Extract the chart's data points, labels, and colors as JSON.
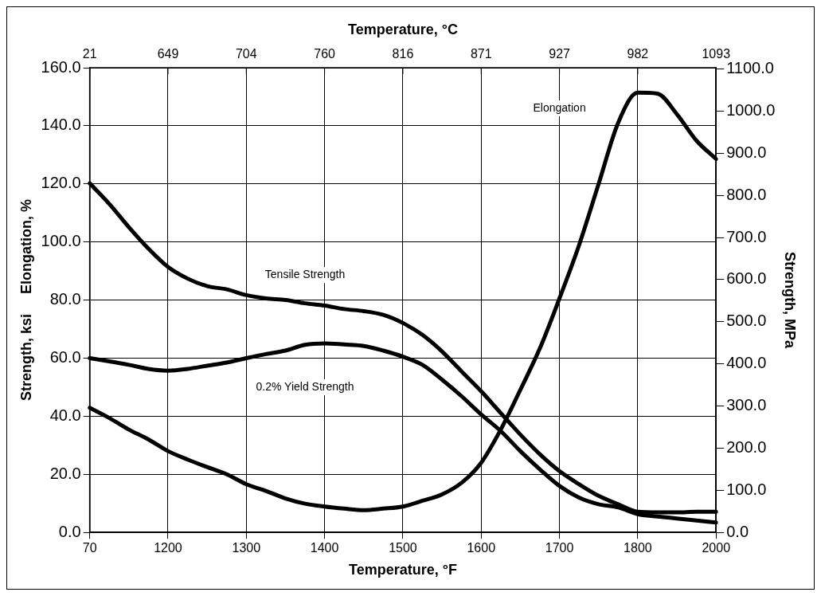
{
  "chart_data": {
    "type": "line",
    "xlabel": "Temperature, °F",
    "x2label": "Temperature, °C",
    "ylabel": "Strength, ksi     Elongation, %",
    "y2label": "Strength, MPa",
    "categories": [
      "70",
      null,
      null,
      null,
      "1200",
      null,
      null,
      null,
      "1300",
      null,
      null,
      null,
      "1400",
      null,
      null,
      null,
      "1500",
      null,
      null,
      null,
      "1600",
      null,
      null,
      null,
      "1700",
      null,
      null,
      null,
      "1800",
      null,
      null,
      null,
      "2000"
    ],
    "ylim": [
      0,
      160
    ],
    "yticks": [
      {
        "value": 0,
        "label": "0.0"
      },
      {
        "value": 20,
        "label": "20.0"
      },
      {
        "value": 40,
        "label": "40.0"
      },
      {
        "value": 60,
        "label": "60.0"
      },
      {
        "value": 80,
        "label": "80.0"
      },
      {
        "value": 100,
        "label": "100.0"
      },
      {
        "value": 120,
        "label": "120.0"
      },
      {
        "value": 140,
        "label": "140.0"
      },
      {
        "value": 160,
        "label": "160.0"
      }
    ],
    "y2lim": [
      0,
      1103
    ],
    "y2ticks": [
      {
        "value": 0,
        "label": "0.0"
      },
      {
        "value": 100,
        "label": "100.0"
      },
      {
        "value": 200,
        "label": "200.0"
      },
      {
        "value": 300,
        "label": "300.0"
      },
      {
        "value": 400,
        "label": "400.0"
      },
      {
        "value": 500,
        "label": "500.0"
      },
      {
        "value": 600,
        "label": "600.0"
      },
      {
        "value": 700,
        "label": "700.0"
      },
      {
        "value": 800,
        "label": "800.0"
      },
      {
        "value": 900,
        "label": "900.0"
      },
      {
        "value": 1000,
        "label": "1000.0"
      },
      {
        "value": 1100,
        "label": "1100.0"
      }
    ],
    "grid": true,
    "legend": false,
    "marker": "none",
    "line_style": "solid",
    "series": [
      {
        "name": "Tensile Strength",
        "color": "#000000",
        "values": [
          120.2,
          113.1,
          105.1,
          97.7,
          91.4,
          87.4,
          84.8,
          83.7,
          81.7,
          80.6,
          80.0,
          78.9,
          78.1,
          76.9,
          76.2,
          74.9,
          72.1,
          68.0,
          62.3,
          55.4,
          48.6,
          41.1,
          33.7,
          26.9,
          21.1,
          16.6,
          12.6,
          9.7,
          7.1,
          6.9,
          6.9,
          7.1,
          7.1
        ]
      },
      {
        "name": "0.2% Yield Strength",
        "color": "#000000",
        "values": [
          60.0,
          58.9,
          57.7,
          56.3,
          55.7,
          56.3,
          57.4,
          58.5,
          60.0,
          61.4,
          62.6,
          64.6,
          65.1,
          64.7,
          64.2,
          62.6,
          60.5,
          57.7,
          52.6,
          46.9,
          40.6,
          34.9,
          28.0,
          21.7,
          16.0,
          12.0,
          9.7,
          8.6,
          6.3,
          5.5,
          4.8,
          4.1,
          3.4
        ]
      },
      {
        "name": "Elongation",
        "color": "#000000",
        "values": [
          42.9,
          39.4,
          35.4,
          32.0,
          28.0,
          25.1,
          22.5,
          20.0,
          16.6,
          14.3,
          11.7,
          9.9,
          8.9,
          8.2,
          7.7,
          8.2,
          8.9,
          10.9,
          13.1,
          17.1,
          24.0,
          35.4,
          49.1,
          63.4,
          80.6,
          98.9,
          120.0,
          141.1,
          151.4,
          151.1,
          144.0,
          134.9,
          128.6
        ]
      }
    ],
    "annotations": [
      "21",
      "649",
      "704",
      "760",
      "816",
      "871",
      "927",
      "982",
      "1093"
    ]
  }
}
